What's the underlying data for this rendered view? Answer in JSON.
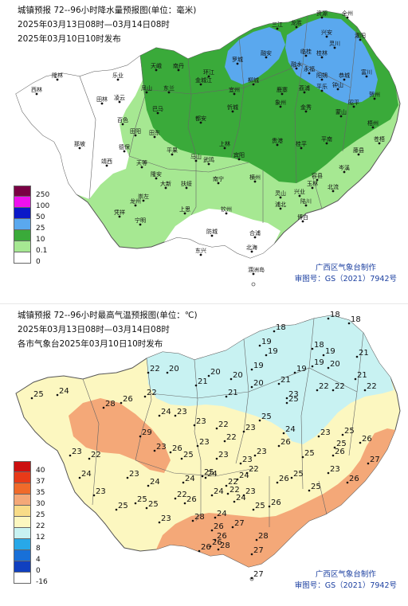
{
  "panel1": {
    "title": "城镇预报 72--96小时降水量预报图(单位：毫米)",
    "period": "2025年03月13日08时—03月14日08时",
    "issued": "2025年03月10日10时发布",
    "legend": [
      {
        "label": "250",
        "color": "#7a0044"
      },
      {
        "label": "100",
        "color": "#ee10ee"
      },
      {
        "label": "50",
        "color": "#0a18c8"
      },
      {
        "label": "25",
        "color": "#5aa8ee"
      },
      {
        "label": "10",
        "color": "#3aaa3a"
      },
      {
        "label": "0.1",
        "color": "#a6e892"
      },
      {
        "label": "0",
        "color": "#ffffff"
      }
    ],
    "credit1": "广西区气象台制作",
    "credit2": "审图号：GS（2021）7942号",
    "cities": [
      {
        "name": "资源"
      },
      {
        "name": "全州"
      },
      {
        "name": "三江"
      },
      {
        "name": "龙胜"
      },
      {
        "name": "兴安"
      },
      {
        "name": "灌阳"
      },
      {
        "name": "融安"
      },
      {
        "name": "临桂"
      },
      {
        "name": "桂林"
      },
      {
        "name": "灵川"
      },
      {
        "name": "罗城"
      },
      {
        "name": "融水"
      },
      {
        "name": "永福"
      },
      {
        "name": "阳朔"
      },
      {
        "name": "恭城"
      },
      {
        "name": "富川"
      },
      {
        "name": "隆林"
      },
      {
        "name": "乐业"
      },
      {
        "name": "天峨"
      },
      {
        "name": "南丹"
      },
      {
        "name": "环江"
      },
      {
        "name": "金城江"
      },
      {
        "name": "宜州"
      },
      {
        "name": "柳城"
      },
      {
        "name": "鹿寨"
      },
      {
        "name": "荔浦"
      },
      {
        "name": "平乐"
      },
      {
        "name": "钟山"
      },
      {
        "name": "贺州"
      },
      {
        "name": "昭平"
      },
      {
        "name": "西林"
      },
      {
        "name": "田林"
      },
      {
        "name": "凌云"
      },
      {
        "name": "凤山"
      },
      {
        "name": "东兰"
      },
      {
        "name": "巴马"
      },
      {
        "name": "都安"
      },
      {
        "name": "忻城"
      },
      {
        "name": "象州"
      },
      {
        "name": "金秀"
      },
      {
        "name": "蒙山"
      },
      {
        "name": "百色"
      },
      {
        "name": "田阳"
      },
      {
        "name": "田东"
      },
      {
        "name": "平果"
      },
      {
        "name": "马山"
      },
      {
        "name": "上林"
      },
      {
        "name": "宾阳"
      },
      {
        "name": "贵港"
      },
      {
        "name": "桂平"
      },
      {
        "name": "平南"
      },
      {
        "name": "藤县"
      },
      {
        "name": "梧州"
      },
      {
        "name": "苍梧"
      },
      {
        "name": "那坡"
      },
      {
        "name": "德保"
      },
      {
        "name": "靖西"
      },
      {
        "name": "天等"
      },
      {
        "name": "隆安"
      },
      {
        "name": "武鸣"
      },
      {
        "name": "南宁"
      },
      {
        "name": "横州"
      },
      {
        "name": "大新"
      },
      {
        "name": "崇左"
      },
      {
        "name": "扶绥"
      },
      {
        "name": "灵山"
      },
      {
        "name": "浦北"
      },
      {
        "name": "玉林"
      },
      {
        "name": "容县"
      },
      {
        "name": "岑溪"
      },
      {
        "name": "陆川"
      },
      {
        "name": "博白"
      },
      {
        "name": "北流"
      },
      {
        "name": "兴业"
      },
      {
        "name": "龙州"
      },
      {
        "name": "凭祥"
      },
      {
        "name": "宁明"
      },
      {
        "name": "上思"
      },
      {
        "name": "钦州"
      },
      {
        "name": "防城"
      },
      {
        "name": "东兴"
      },
      {
        "name": "合浦"
      },
      {
        "name": "北海"
      },
      {
        "name": "涠洲岛"
      }
    ]
  },
  "panel2": {
    "title": "城镇预报 72--96小时最高气温预报图(单位：℃)",
    "period": "2025年03月13日08时—03月14日08时",
    "issued": "各市气象台2025年03月10日10时发布",
    "legend": [
      {
        "label": "40",
        "color": "#cc1010"
      },
      {
        "label": "37",
        "color": "#e83a18"
      },
      {
        "label": "35",
        "color": "#f06a2a"
      },
      {
        "label": "30",
        "color": "#f4a878"
      },
      {
        "label": "25",
        "color": "#f8dc88"
      },
      {
        "label": "22",
        "color": "#fcf7c0"
      },
      {
        "label": "12",
        "color": "#c8f2f2"
      },
      {
        "label": "8",
        "color": "#28a8e8"
      },
      {
        "label": "4",
        "color": "#1870d8"
      },
      {
        "label": "0",
        "color": "#1040c0"
      },
      {
        "label": "-16",
        "color": "#ffffff"
      }
    ],
    "credit1": "广西区气象台制作",
    "credit2": "审图号：GS（2021）7942号",
    "temps": [
      18,
      18,
      18,
      19,
      18,
      19,
      19,
      19,
      19,
      20,
      19,
      21,
      20,
      20,
      20,
      21,
      21,
      21,
      22,
      22,
      21,
      22,
      20,
      22,
      23,
      25,
      25,
      23,
      22,
      24,
      22,
      28,
      26,
      23,
      23,
      23,
      22,
      26,
      25,
      29,
      24,
      26,
      25,
      23,
      23,
      25,
      24,
      22,
      23,
      23,
      26,
      23,
      25,
      26,
      24,
      25,
      23,
      22,
      24,
      23,
      23,
      24,
      25,
      22,
      24,
      24,
      25,
      26,
      23,
      25,
      26,
      25,
      27,
      24,
      24,
      22,
      22,
      24,
      26,
      25,
      23,
      26,
      25,
      25,
      23,
      28,
      26,
      27,
      26,
      28,
      26,
      28,
      26,
      27,
      27
    ]
  }
}
